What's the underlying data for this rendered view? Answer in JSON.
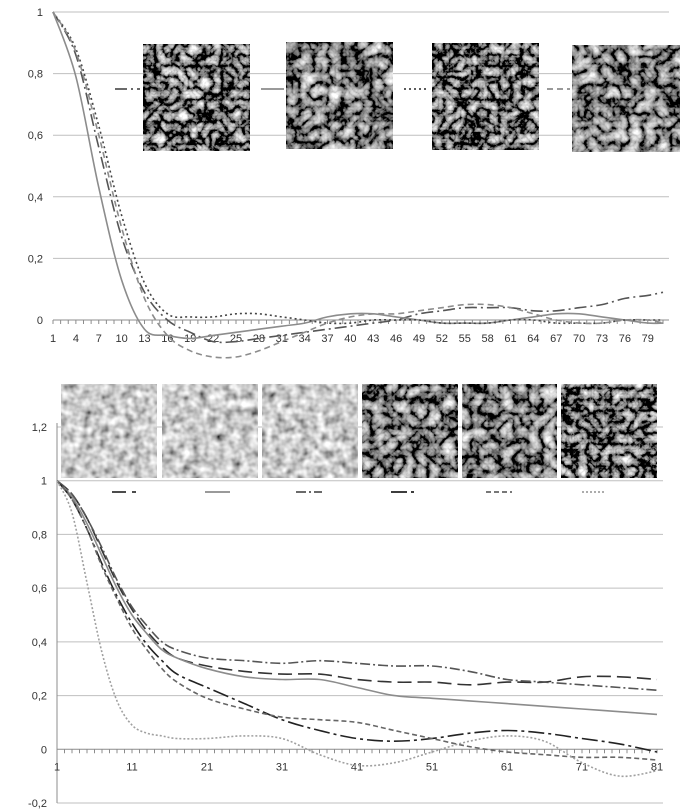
{
  "chart_data": [
    {
      "type": "line",
      "ylim": [
        0,
        1
      ],
      "yticks": [
        "0",
        "0,2",
        "0,4",
        "0,6",
        "0,8",
        "1"
      ],
      "ytick_values": [
        0,
        0.2,
        0.4,
        0.6,
        0.8,
        1
      ],
      "xticks": [
        "1",
        "4",
        "7",
        "10",
        "13",
        "16",
        "19",
        "22",
        "25",
        "28",
        "31",
        "34",
        "37",
        "40",
        "43",
        "46",
        "49",
        "52",
        "55",
        "58",
        "61",
        "64",
        "67",
        "70",
        "73",
        "76",
        "79"
      ],
      "grid": true,
      "legend": "top, drawn as line swatches next to texture thumbnails",
      "x": [
        1,
        4,
        7,
        10,
        13,
        16,
        19,
        22,
        25,
        28,
        31,
        34,
        37,
        40,
        43,
        46,
        49,
        52,
        55,
        58,
        61,
        64,
        67,
        70,
        73,
        76,
        79,
        81
      ],
      "series": [
        {
          "values": [
            1.0,
            0.86,
            0.56,
            0.27,
            0.09,
            0.0,
            -0.04,
            -0.07,
            -0.07,
            -0.06,
            -0.05,
            -0.04,
            -0.03,
            -0.02,
            -0.01,
            0.0,
            0.02,
            0.03,
            0.04,
            0.04,
            0.04,
            0.03,
            0.03,
            0.04,
            0.05,
            0.07,
            0.08,
            0.09
          ],
          "color": "#555555",
          "dash": "12,4,2,4"
        },
        {
          "values": [
            1.0,
            0.79,
            0.43,
            0.13,
            -0.03,
            -0.05,
            -0.06,
            -0.05,
            -0.04,
            -0.03,
            -0.02,
            -0.01,
            0.01,
            0.02,
            0.02,
            0.01,
            0.0,
            -0.01,
            -0.01,
            -0.01,
            0.0,
            0.01,
            0.02,
            0.02,
            0.01,
            0.0,
            -0.01,
            -0.01
          ],
          "color": "#8c8c8c",
          "dash": ""
        },
        {
          "values": [
            1.0,
            0.88,
            0.63,
            0.34,
            0.12,
            0.02,
            0.01,
            0.01,
            0.02,
            0.02,
            0.01,
            0.0,
            -0.01,
            -0.01,
            0.0,
            0.0,
            0.0,
            -0.01,
            -0.01,
            -0.01,
            0.0,
            0.0,
            -0.01,
            -0.01,
            -0.01,
            0.0,
            0.0,
            0.0
          ],
          "color": "#444444",
          "dash": "2,3"
        },
        {
          "values": [
            1.0,
            0.87,
            0.6,
            0.3,
            0.07,
            -0.05,
            -0.1,
            -0.12,
            -0.12,
            -0.1,
            -0.07,
            -0.04,
            -0.01,
            0.01,
            0.02,
            0.02,
            0.03,
            0.04,
            0.05,
            0.05,
            0.04,
            0.02,
            0.0,
            -0.01,
            -0.01,
            0.0,
            0.0,
            -0.01
          ],
          "color": "#8c8c8c",
          "dash": "6,4"
        }
      ]
    },
    {
      "type": "line",
      "ylim": [
        -0.2,
        1.2
      ],
      "yticks": [
        "-0,2",
        "0",
        "0,2",
        "0,4",
        "0,6",
        "0,8",
        "1",
        "1,2"
      ],
      "ytick_values": [
        -0.2,
        0,
        0.2,
        0.4,
        0.6,
        0.8,
        1,
        1.2
      ],
      "xticks": [
        "1",
        "11",
        "21",
        "31",
        "41",
        "51",
        "61",
        "71",
        "81"
      ],
      "grid": true,
      "legend": "top, drawn as line swatches under texture thumbnails",
      "x": [
        1,
        3,
        5,
        7,
        9,
        11,
        13,
        15,
        17,
        21,
        26,
        31,
        36,
        41,
        46,
        51,
        56,
        61,
        66,
        71,
        76,
        81
      ],
      "series": [
        {
          "values": [
            1.0,
            0.95,
            0.86,
            0.74,
            0.62,
            0.52,
            0.44,
            0.38,
            0.34,
            0.31,
            0.29,
            0.28,
            0.28,
            0.26,
            0.25,
            0.25,
            0.24,
            0.25,
            0.25,
            0.27,
            0.27,
            0.26
          ],
          "color": "#333333",
          "dash": "14,6"
        },
        {
          "values": [
            1.0,
            0.94,
            0.84,
            0.72,
            0.6,
            0.5,
            0.43,
            0.37,
            0.34,
            0.3,
            0.27,
            0.26,
            0.26,
            0.23,
            0.2,
            0.19,
            0.18,
            0.17,
            0.16,
            0.15,
            0.14,
            0.13
          ],
          "color": "#8c8c8c",
          "dash": ""
        },
        {
          "values": [
            1.0,
            0.95,
            0.86,
            0.75,
            0.63,
            0.53,
            0.46,
            0.4,
            0.37,
            0.34,
            0.33,
            0.32,
            0.33,
            0.32,
            0.31,
            0.31,
            0.29,
            0.26,
            0.25,
            0.24,
            0.23,
            0.22
          ],
          "color": "#555555",
          "dash": "10,3,2,3"
        },
        {
          "values": [
            1.0,
            0.93,
            0.82,
            0.69,
            0.57,
            0.47,
            0.39,
            0.33,
            0.28,
            0.23,
            0.17,
            0.11,
            0.07,
            0.04,
            0.03,
            0.04,
            0.06,
            0.07,
            0.06,
            0.04,
            0.02,
            -0.01
          ],
          "color": "#222222",
          "dash": "16,4,3,4"
        },
        {
          "values": [
            1.0,
            0.93,
            0.82,
            0.68,
            0.56,
            0.45,
            0.37,
            0.3,
            0.25,
            0.19,
            0.15,
            0.12,
            0.11,
            0.1,
            0.07,
            0.04,
            0.01,
            -0.01,
            -0.02,
            -0.03,
            -0.03,
            -0.04
          ],
          "color": "#666666",
          "dash": "5,3"
        },
        {
          "values": [
            1.0,
            0.88,
            0.62,
            0.36,
            0.18,
            0.09,
            0.06,
            0.05,
            0.04,
            0.04,
            0.05,
            0.04,
            -0.02,
            -0.06,
            -0.05,
            -0.01,
            0.03,
            0.05,
            0.03,
            -0.05,
            -0.1,
            -0.08
          ],
          "color": "#a0a0a0",
          "dash": "2,2"
        }
      ]
    }
  ]
}
